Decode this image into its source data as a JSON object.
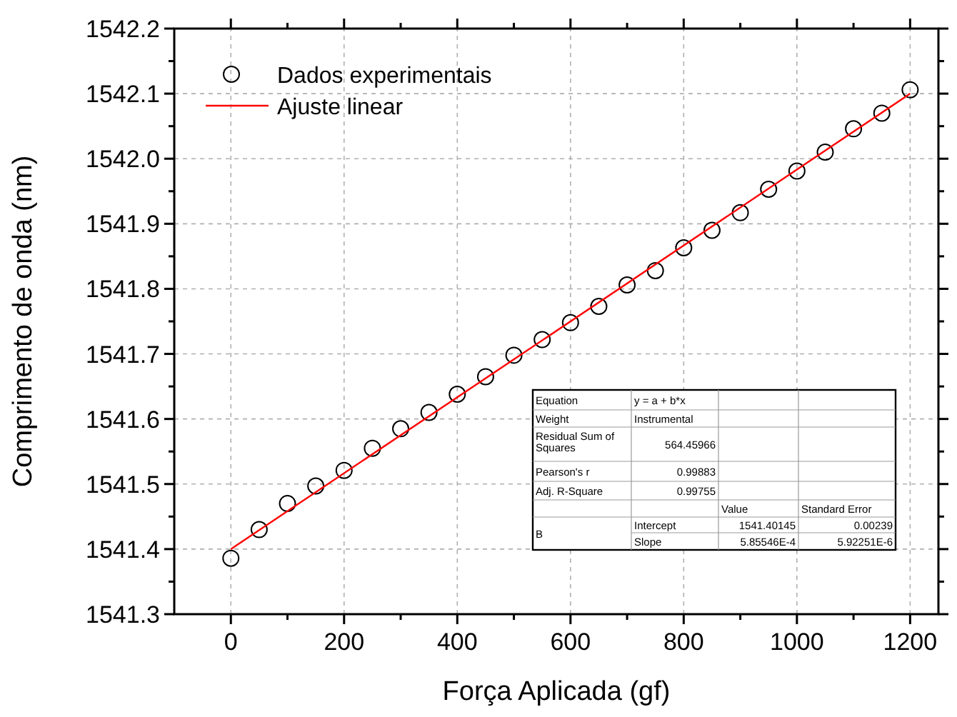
{
  "chart_data": {
    "type": "scatter",
    "xlabel": "Força Aplicada  (gf)",
    "ylabel": "Comprimento de onda (nm)",
    "xlim": [
      -100,
      1250
    ],
    "ylim": [
      1541.3,
      1542.2
    ],
    "xticks": [
      0,
      200,
      400,
      600,
      800,
      1000,
      1200
    ],
    "yticks": [
      1541.3,
      1541.4,
      1541.5,
      1541.6,
      1541.7,
      1541.8,
      1541.9,
      {
        "value": 1542.0,
        "label": "1542.0"
      },
      1542.1,
      1542.2
    ],
    "grid": true,
    "legend": "top left",
    "series": [
      {
        "name": "Dados experimentais",
        "marker": "circle",
        "color": "#000000",
        "x": [
          0,
          50,
          100,
          150,
          200,
          250,
          300,
          350,
          400,
          450,
          500,
          550,
          600,
          650,
          700,
          750,
          800,
          850,
          900,
          950,
          1000,
          1050,
          1100,
          1150,
          1200
        ],
        "values": [
          1541.386,
          1541.43,
          1541.47,
          1541.497,
          1541.521,
          1541.555,
          1541.585,
          1541.61,
          1541.638,
          1541.665,
          1541.698,
          1541.722,
          1541.748,
          1541.773,
          1541.806,
          1541.828,
          1541.863,
          1541.89,
          1541.917,
          1541.953,
          1541.981,
          1542.01,
          1542.046,
          1542.07,
          1542.106
        ]
      },
      {
        "name": "Ajuste linear",
        "type": "line",
        "color": "#ff0000",
        "x": [
          0,
          1200
        ],
        "values": [
          1541.4,
          1542.1
        ]
      }
    ],
    "annotations": [
      "Equation",
      "y = a + b*x",
      "Weight",
      "Instrumental",
      "Residual Sum of Squares",
      "564.45966",
      "Pearson's r",
      "0.99883",
      "Adj. R-Square",
      "0.99755",
      "Value",
      "Standard Error",
      "B",
      "Intercept",
      "1541.40145",
      "0.00239",
      "Slope",
      "5.85546E-4",
      "5.92251E-6"
    ]
  }
}
